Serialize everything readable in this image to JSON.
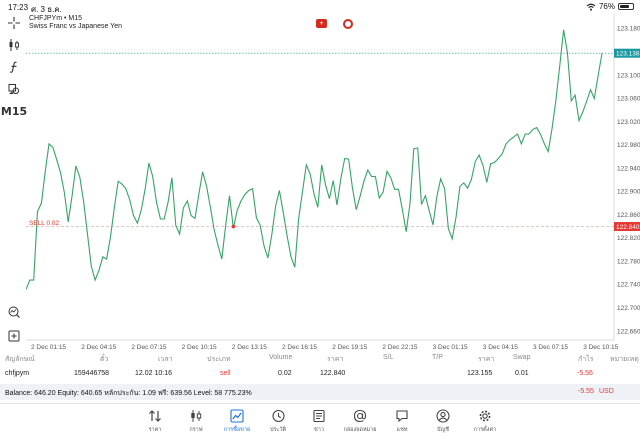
{
  "status": {
    "time": "17:23",
    "date": "ศ. 3 ธ.ค.",
    "battery": "76%",
    "battery_level": 0.76
  },
  "toolbar": {
    "timeframe": "M15",
    "items": [
      "crosshair-icon",
      "candles-icon",
      "indicator-icon",
      "objects-icon",
      "timeframe",
      "zoom-icon",
      "add-icon"
    ]
  },
  "chart": {
    "symbol": "CHFJPYm",
    "timeframe": "M15",
    "description": "Swiss Franc vs Japanese Yen",
    "current_price_label": "123.138",
    "sell_label": "SELL 0.02",
    "sell_price_label": "122.840",
    "line_color": "#36a366",
    "price_color": "#1a9aa0",
    "sell_color": "#e53935"
  },
  "chart_data": {
    "type": "line",
    "y_ticks": [
      "123.180",
      "123.100",
      "123.060",
      "123.020",
      "122.980",
      "122.940",
      "122.900",
      "122.860",
      "122.820",
      "122.780",
      "122.740",
      "122.700",
      "122.660"
    ],
    "x_ticks": [
      "2 Dec 01:15",
      "2 Dec 04:15",
      "2 Dec 07:15",
      "2 Dec 10:15",
      "2 Dec 13:15",
      "2 Dec 16:15",
      "2 Dec 19:15",
      "2 Dec 22:15",
      "3 Dec 01:15",
      "3 Dec 04:15",
      "3 Dec 07:15",
      "3 Dec 10:15"
    ],
    "ylim": [
      122.645,
      123.195
    ],
    "current_price": 123.138,
    "sell_price": 122.84,
    "entry_index": 54,
    "values": [
      122.732,
      122.748,
      122.748,
      122.866,
      122.88,
      122.934,
      122.982,
      122.976,
      122.955,
      122.932,
      122.898,
      122.848,
      122.893,
      122.944,
      122.925,
      122.883,
      122.828,
      122.772,
      122.748,
      122.765,
      122.788,
      122.784,
      122.822,
      122.872,
      122.918,
      122.913,
      122.905,
      122.886,
      122.859,
      122.846,
      122.868,
      122.903,
      122.949,
      122.926,
      122.881,
      122.853,
      122.853,
      122.882,
      122.924,
      122.842,
      122.827,
      122.872,
      122.884,
      122.859,
      122.854,
      122.895,
      122.934,
      122.91,
      122.874,
      122.834,
      122.808,
      122.784,
      122.843,
      122.893,
      122.837,
      122.868,
      122.884,
      122.895,
      122.902,
      122.905,
      122.855,
      122.842,
      122.806,
      122.786,
      122.826,
      122.875,
      122.902,
      122.864,
      122.824,
      122.788,
      122.77,
      122.853,
      122.9,
      122.946,
      122.93,
      122.896,
      122.873,
      122.946,
      122.912,
      122.888,
      122.919,
      122.877,
      122.923,
      122.957,
      122.956,
      122.907,
      122.869,
      122.892,
      122.918,
      122.937,
      122.926,
      122.926,
      122.889,
      122.899,
      122.935,
      122.924,
      122.904,
      122.904,
      122.87,
      122.831,
      122.88,
      122.974,
      122.975,
      122.878,
      122.893,
      122.867,
      122.843,
      122.892,
      122.922,
      122.905,
      122.836,
      122.819,
      122.857,
      122.909,
      122.915,
      122.906,
      122.921,
      122.952,
      122.963,
      122.945,
      122.916,
      122.948,
      122.95,
      122.957,
      122.965,
      122.982,
      122.989,
      122.994,
      122.999,
      122.982,
      122.999,
      122.999,
      123.007,
      123.01,
      122.998,
      122.982,
      122.969,
      123.009,
      123.057,
      123.117,
      123.178,
      123.139,
      123.056,
      123.066,
      123.022,
      123.037,
      123.055,
      123.075,
      123.06,
      123.1,
      123.138
    ]
  },
  "positions": {
    "headers": [
      "สัญลักษณ์",
      "ตั๋ว",
      "เวลา",
      "ประเภท",
      "Volume",
      "ราคา",
      "S/L",
      "T/P",
      "ราคา",
      "Swap",
      "กำไร",
      "หมายเหตุ"
    ],
    "row": {
      "symbol": "chfjpym",
      "ticket": "159446758",
      "time": "12.02 10:16",
      "type": "sell",
      "volume": "0.02",
      "open_price": "122.840",
      "sl": "",
      "tp": "",
      "current_price": "123.155",
      "swap": "0.01",
      "profit": "-5.56",
      "comment": ""
    }
  },
  "account": {
    "balance_line": "Balance: 646.20 Equity: 640.65 หลักประกัน: 1.09 ฟรี: 639.56 Level: 58 775.23%",
    "profit": "-5.55",
    "currency": "USD"
  },
  "tabs": [
    {
      "label": "ราคา",
      "icon": "quotes-icon"
    },
    {
      "label": "กราฟ",
      "icon": "chart-icon"
    },
    {
      "label": "การซื้อขาย",
      "icon": "trade-icon",
      "active": true
    },
    {
      "label": "ประวัติ",
      "icon": "history-icon"
    },
    {
      "label": "ข่าว",
      "icon": "news-icon"
    },
    {
      "label": "กล่องจดหมาย",
      "icon": "mailbox-icon"
    },
    {
      "label": "แชท",
      "icon": "chat-icon"
    },
    {
      "label": "บัญชี",
      "icon": "account-icon"
    },
    {
      "label": "การตั้งค่า",
      "icon": "settings-icon"
    }
  ]
}
